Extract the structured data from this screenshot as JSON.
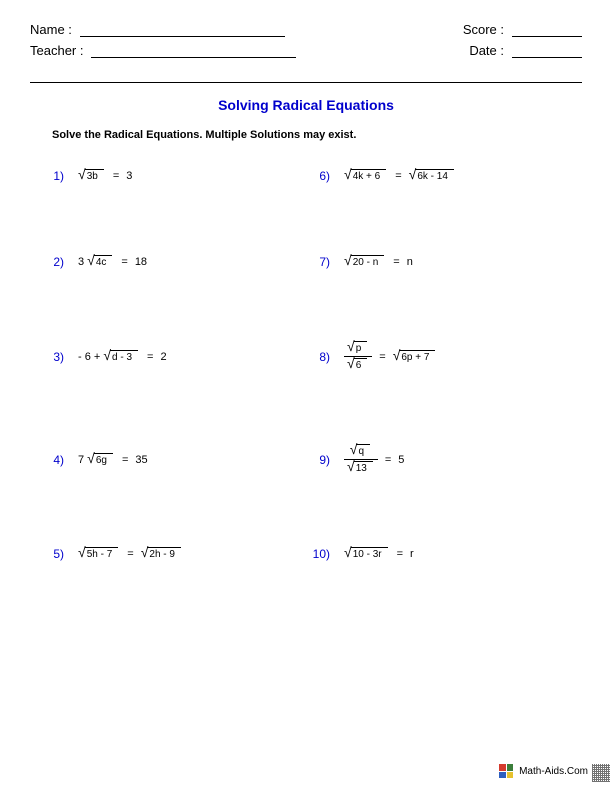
{
  "header": {
    "name_label": "Name :",
    "teacher_label": "Teacher :",
    "score_label": "Score :",
    "date_label": "Date :"
  },
  "title": {
    "text": "Solving Radical Equations",
    "color": "#0000cc"
  },
  "instructions": "Solve the Radical Equations. Multiple Solutions may exist.",
  "number_color": "#0000cc",
  "problems": [
    {
      "n": "1)",
      "lhs_coef": "",
      "lhs_rad": "3b",
      "mid": "=",
      "rhs": "3"
    },
    {
      "n": "6)",
      "lhs_coef": "",
      "lhs_rad": "4k + 6",
      "mid": "=",
      "rhs_rad": "6k - 14"
    },
    {
      "n": "2)",
      "lhs_coef": "3",
      "lhs_rad": "4c",
      "mid": "=",
      "rhs": "18"
    },
    {
      "n": "7)",
      "lhs_coef": "",
      "lhs_rad": "20 - n",
      "mid": "=",
      "rhs": "n"
    },
    {
      "n": "3)",
      "lhs_coef": "- 6 +",
      "lhs_rad": "d - 3",
      "mid": "=",
      "rhs": "2"
    },
    {
      "n": "8)",
      "frac_top": "p",
      "frac_bot": "6",
      "mid": "=",
      "rhs_rad": "6p + 7"
    },
    {
      "n": "4)",
      "lhs_coef": "7",
      "lhs_rad": "6g",
      "mid": "=",
      "rhs": "35"
    },
    {
      "n": "9)",
      "frac_top": "q",
      "frac_bot": "13",
      "mid": "=",
      "rhs": "5"
    },
    {
      "n": "5)",
      "lhs_coef": "",
      "lhs_rad": "5h - 7",
      "mid": "=",
      "rhs_rad": "2h - 9"
    },
    {
      "n": "10)",
      "lhs_coef": "",
      "lhs_rad": "10 - 3r",
      "mid": "=",
      "rhs": "r"
    }
  ],
  "footer": {
    "text": "Math-Aids.Com",
    "icon_colors": [
      "#d43b2e",
      "#3b7e3b",
      "#2e5fbf",
      "#e6c22e"
    ]
  }
}
